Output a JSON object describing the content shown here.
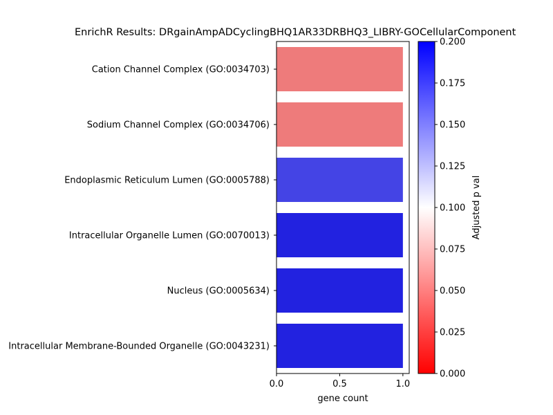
{
  "chart_data": {
    "type": "bar",
    "orientation": "horizontal",
    "title": "EnrichR Results: DRgainAmpADCyclingBHQ1AR33DRBHQ3_LIBRY-GOCellularComponent",
    "xlabel": "gene count",
    "ylabel": "",
    "xlim": [
      0,
      1.05
    ],
    "x_ticks": [
      "0.0",
      "0.5",
      "1.0"
    ],
    "categories": [
      "Cation Channel Complex (GO:0034703)",
      "Sodium Channel Complex (GO:0034706)",
      "Endoplasmic Reticulum Lumen (GO:0005788)",
      "Intracellular Organelle Lumen (GO:0070013)",
      "Nucleus (GO:0005634)",
      "Intracellular Membrane-Bounded Organelle (GO:0043231)"
    ],
    "values": [
      1,
      1,
      1,
      1,
      1,
      1
    ],
    "bar_colors": [
      "#ee7b7b",
      "#ee7b7b",
      "#4444e5",
      "#2222e0",
      "#2222e0",
      "#2222e0"
    ],
    "grid": false,
    "colorbar": {
      "label": "Adjusted p val",
      "range": [
        0,
        0.2
      ],
      "ticks": [
        "0.000",
        "0.025",
        "0.050",
        "0.075",
        "0.100",
        "0.125",
        "0.150",
        "0.175",
        "0.200"
      ],
      "colors": [
        "#ff0000",
        "#ffffff",
        "#0000ff"
      ]
    }
  }
}
